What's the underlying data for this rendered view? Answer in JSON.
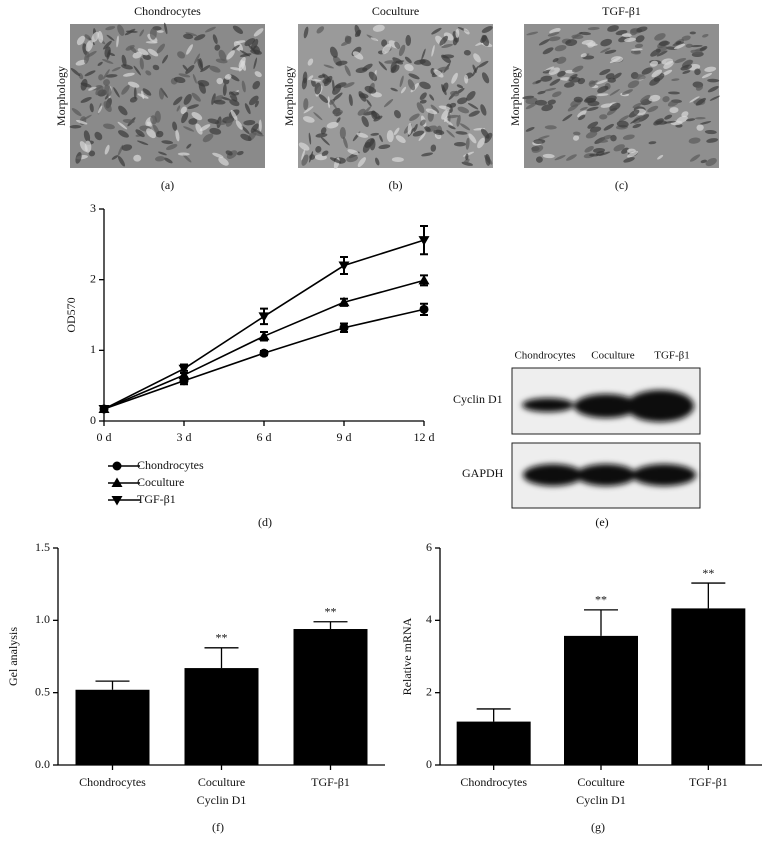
{
  "images": {
    "panels": [
      {
        "title": "Chondrocytes",
        "ylabel": "Morphology",
        "label": "(a)"
      },
      {
        "title": "Coculture",
        "ylabel": "Morphology",
        "label": "(b)"
      },
      {
        "title": "TGF-β1",
        "ylabel": "Morphology",
        "label": "(c)"
      }
    ]
  },
  "blot": {
    "lanes": [
      "Chondrocytes",
      "Coculture",
      "TGF-β1"
    ],
    "rows": [
      "Cyclin D1",
      "GAPDH"
    ],
    "label": "(e)"
  },
  "chart_data": [
    {
      "type": "line",
      "ylabel": "OD570",
      "panel_label": "(d)",
      "x": [
        0,
        3,
        6,
        9,
        12
      ],
      "xlim": [
        0,
        12
      ],
      "xticks": [
        {
          "value": 0,
          "label": "0 d"
        },
        {
          "value": 3,
          "label": "3 d"
        },
        {
          "value": 6,
          "label": "6 d"
        },
        {
          "value": 9,
          "label": "9 d"
        },
        {
          "value": 12,
          "label": "12 d"
        }
      ],
      "ylim": [
        0,
        3
      ],
      "yticks": [
        0,
        1,
        2,
        3
      ],
      "series": [
        {
          "name": "Chondrocytes",
          "color": "#000000",
          "marker": "circle",
          "values": [
            0.17,
            0.57,
            0.96,
            1.32,
            1.58
          ],
          "errors": [
            0.03,
            0.05,
            0.03,
            0.06,
            0.08
          ]
        },
        {
          "name": "Coculture",
          "color": "#000000",
          "marker": "triangle-up",
          "values": [
            0.17,
            0.65,
            1.2,
            1.68,
            1.99
          ],
          "errors": [
            0.03,
            0.06,
            0.06,
            0.05,
            0.07
          ]
        },
        {
          "name": "TGF-β1",
          "color": "#000000",
          "marker": "triangle-down",
          "values": [
            0.17,
            0.74,
            1.48,
            2.2,
            2.56
          ],
          "errors": [
            0.03,
            0.06,
            0.11,
            0.12,
            0.2
          ]
        }
      ]
    },
    {
      "type": "bar",
      "ylabel": "Gel analysis",
      "xlabel": "Cyclin D1",
      "panel_label": "(f)",
      "categories": [
        "Chondrocytes",
        "Coculture",
        "TGF-β1"
      ],
      "values": [
        0.52,
        0.67,
        0.94
      ],
      "errors": [
        0.06,
        0.14,
        0.05
      ],
      "annotations": [
        null,
        "**",
        "**"
      ],
      "color": "#000000",
      "ylim": [
        0,
        1.5
      ],
      "yticks": [
        {
          "value": 0,
          "label": "0.0"
        },
        {
          "value": 0.5,
          "label": "0.5"
        },
        {
          "value": 1,
          "label": "1.0"
        },
        {
          "value": 1.5,
          "label": "1.5"
        }
      ]
    },
    {
      "type": "bar",
      "ylabel": "Relative mRNA",
      "xlabel": "Cyclin D1",
      "panel_label": "(g)",
      "categories": [
        "Chondrocytes",
        "Coculture",
        "TGF-β1"
      ],
      "values": [
        1.2,
        3.57,
        4.33
      ],
      "errors": [
        0.35,
        0.72,
        0.7
      ],
      "annotations": [
        null,
        "**",
        "**"
      ],
      "color": "#000000",
      "ylim": [
        0,
        6
      ],
      "yticks": [
        0,
        2,
        4,
        6
      ]
    }
  ]
}
